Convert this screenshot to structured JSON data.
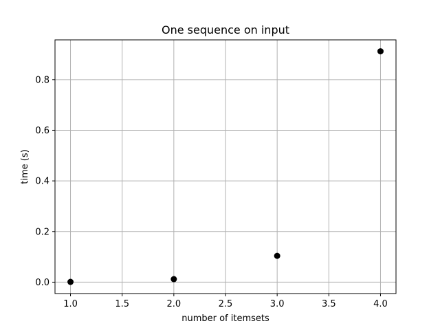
{
  "chart_data": {
    "type": "scatter",
    "title": "One sequence on input",
    "xlabel": "number of itemsets",
    "ylabel": "time (s)",
    "x": [
      1.0,
      2.0,
      3.0,
      4.0
    ],
    "y": [
      0.001,
      0.012,
      0.104,
      0.912
    ],
    "xlim": [
      0.85,
      4.15
    ],
    "ylim": [
      -0.045,
      0.957
    ],
    "xticks": [
      1.0,
      1.5,
      2.0,
      2.5,
      3.0,
      3.5,
      4.0
    ],
    "xtick_labels": [
      "1.0",
      "1.5",
      "2.0",
      "2.5",
      "3.0",
      "3.5",
      "4.0"
    ],
    "yticks": [
      0.0,
      0.2,
      0.4,
      0.6,
      0.8
    ],
    "ytick_labels": [
      "0.0",
      "0.2",
      "0.4",
      "0.6",
      "0.8"
    ],
    "grid": true,
    "marker_color": "#000000",
    "grid_color": "#b0b0b0"
  }
}
